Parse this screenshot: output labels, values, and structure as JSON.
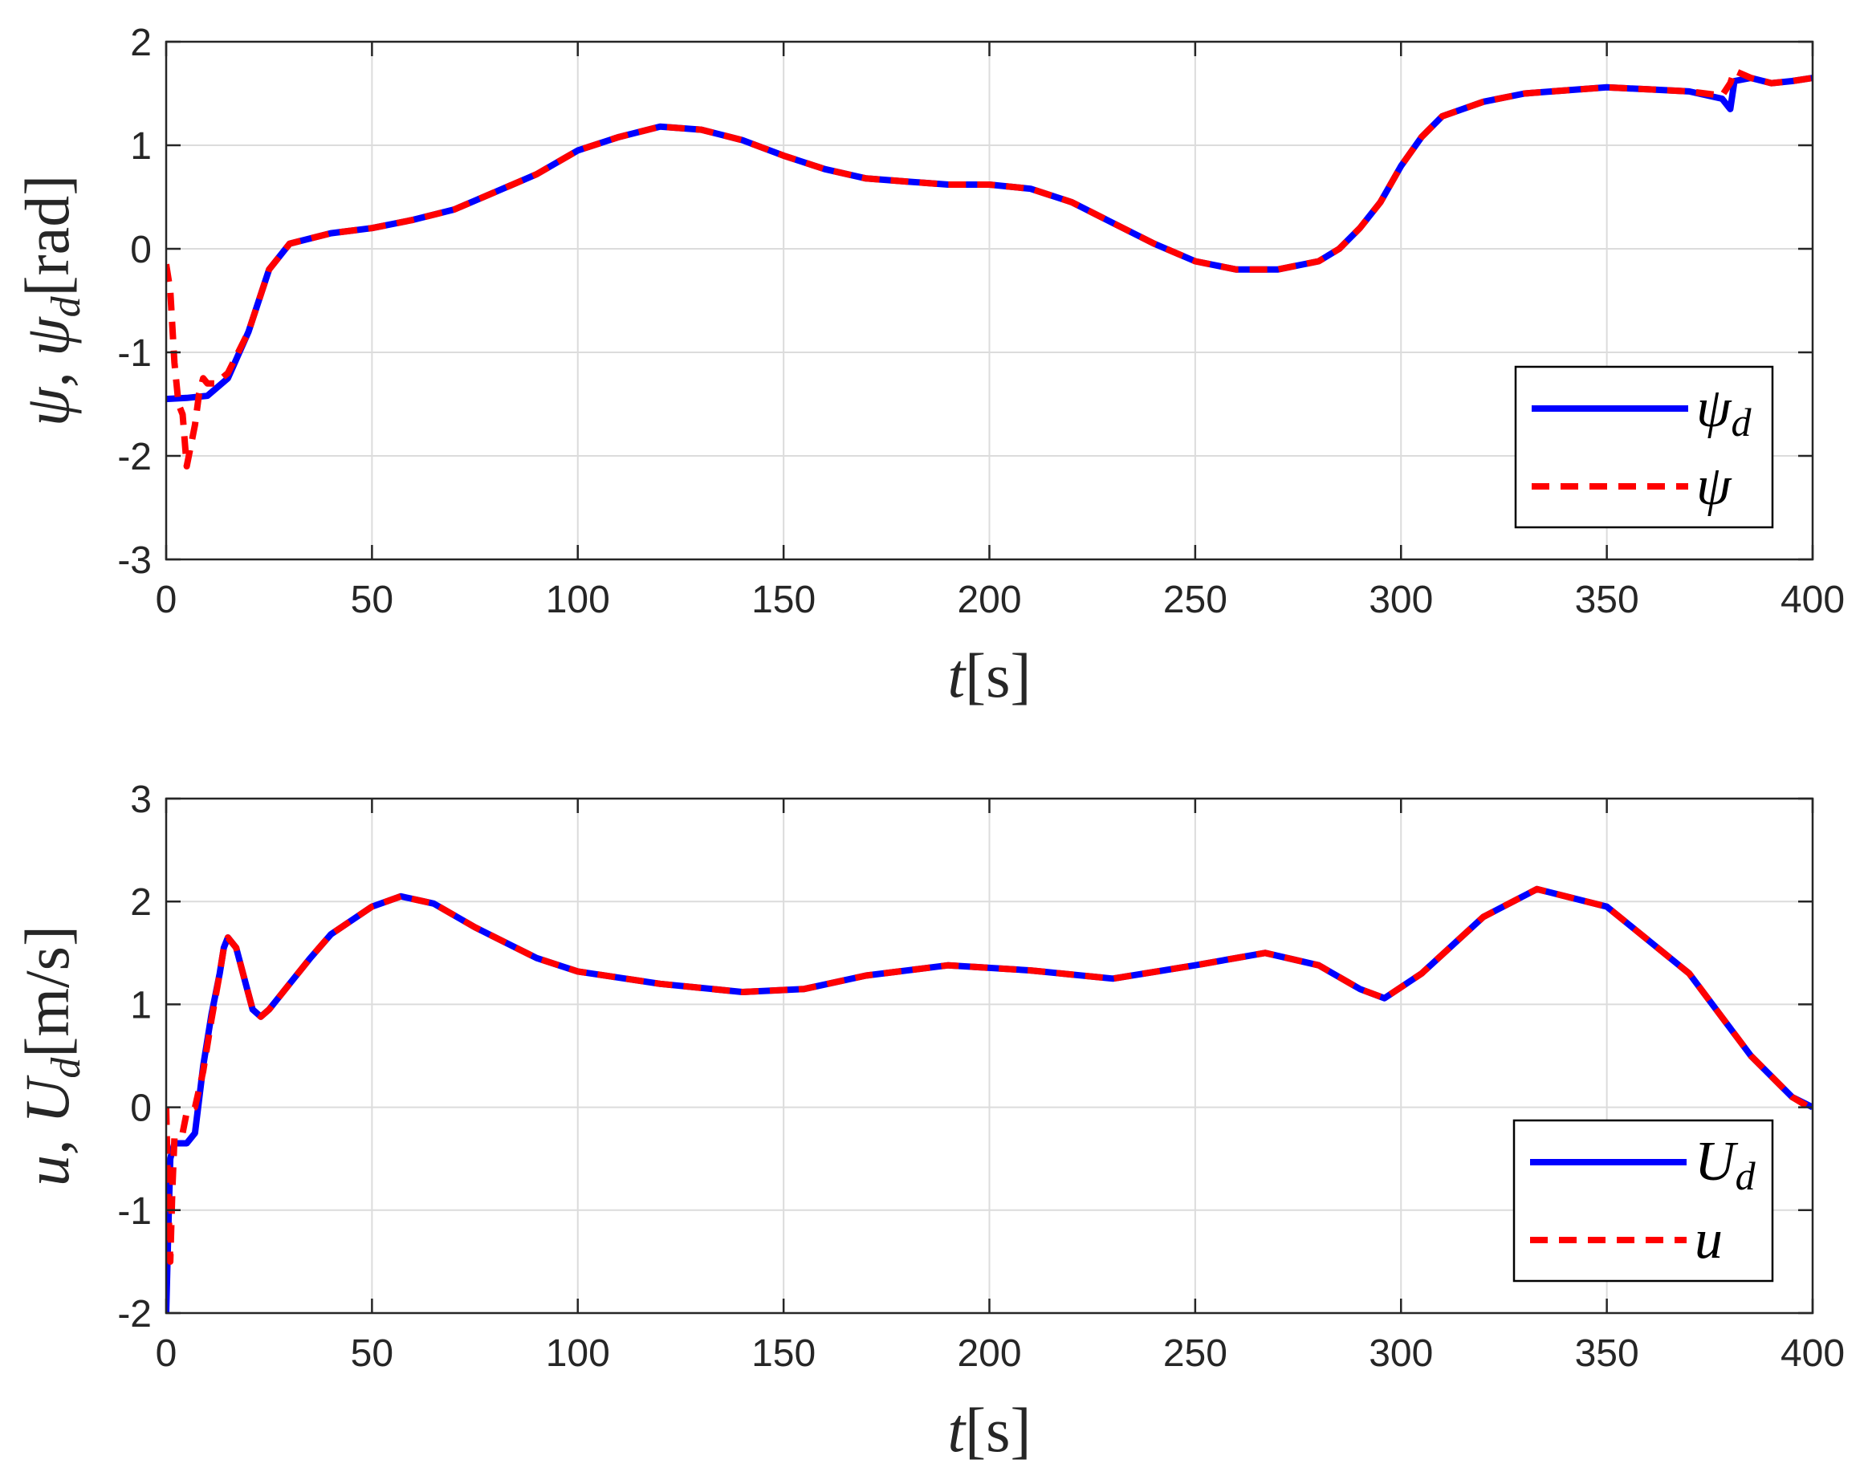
{
  "colors": {
    "desired": "#0000ff",
    "actual": "#ff0000",
    "grid": "#dcdcdc",
    "axis": "#262626"
  },
  "chart_data": [
    {
      "type": "line",
      "xlabel": {
        "main": "t",
        "unit": "[s]"
      },
      "ylabel": {
        "main": "ψ, ψ",
        "sub": "d",
        "unit": "[rad]"
      },
      "xlim": [
        0,
        400
      ],
      "ylim": [
        -3,
        2
      ],
      "x_ticks": [
        0,
        50,
        100,
        150,
        200,
        250,
        300,
        350,
        400
      ],
      "y_ticks": [
        -3,
        -2,
        -1,
        0,
        1,
        2
      ],
      "grid": true,
      "legend_position": "bottom-right",
      "series": [
        {
          "name": "ψ_d",
          "label_main": "ψ",
          "label_sub": "d",
          "style": "solid",
          "color": "#0000ff",
          "x": [
            0,
            5,
            10,
            15,
            20,
            25,
            30,
            40,
            50,
            60,
            70,
            80,
            90,
            100,
            110,
            120,
            130,
            140,
            150,
            160,
            170,
            180,
            190,
            200,
            210,
            220,
            230,
            240,
            250,
            260,
            270,
            280,
            285,
            290,
            295,
            300,
            305,
            310,
            320,
            330,
            340,
            350,
            360,
            370,
            378,
            380,
            381,
            385,
            390,
            395,
            400
          ],
          "y": [
            -1.45,
            -1.44,
            -1.42,
            -1.25,
            -0.8,
            -0.2,
            0.05,
            0.15,
            0.2,
            0.28,
            0.38,
            0.55,
            0.72,
            0.95,
            1.08,
            1.18,
            1.15,
            1.05,
            0.9,
            0.77,
            0.68,
            0.65,
            0.62,
            0.62,
            0.58,
            0.45,
            0.25,
            0.05,
            -0.12,
            -0.2,
            -0.2,
            -0.12,
            0.0,
            0.2,
            0.45,
            0.8,
            1.08,
            1.28,
            1.42,
            1.5,
            1.53,
            1.56,
            1.54,
            1.52,
            1.45,
            1.35,
            1.62,
            1.65,
            1.6,
            1.62,
            1.65
          ]
        },
        {
          "name": "ψ",
          "label_main": "ψ",
          "label_sub": "",
          "style": "dashed",
          "color": "#ff0000",
          "x": [
            0,
            1,
            2,
            3,
            4,
            5,
            6,
            7,
            8,
            9,
            10,
            12,
            15,
            20,
            25,
            30,
            40,
            50,
            60,
            70,
            80,
            90,
            100,
            110,
            120,
            130,
            140,
            150,
            160,
            170,
            180,
            190,
            200,
            210,
            220,
            230,
            240,
            250,
            260,
            270,
            280,
            285,
            290,
            295,
            300,
            305,
            310,
            320,
            330,
            340,
            350,
            360,
            370,
            378,
            380,
            381,
            385,
            390,
            395,
            400
          ],
          "y": [
            -0.15,
            -0.4,
            -1.1,
            -1.5,
            -1.6,
            -2.1,
            -1.9,
            -1.7,
            -1.4,
            -1.25,
            -1.3,
            -1.3,
            -1.2,
            -0.8,
            -0.2,
            0.05,
            0.15,
            0.2,
            0.28,
            0.38,
            0.55,
            0.72,
            0.95,
            1.08,
            1.18,
            1.15,
            1.05,
            0.9,
            0.77,
            0.68,
            0.65,
            0.62,
            0.62,
            0.58,
            0.45,
            0.25,
            0.05,
            -0.12,
            -0.2,
            -0.2,
            -0.12,
            0.0,
            0.2,
            0.45,
            0.8,
            1.08,
            1.28,
            1.42,
            1.5,
            1.53,
            1.56,
            1.54,
            1.52,
            1.48,
            1.6,
            1.72,
            1.65,
            1.6,
            1.62,
            1.65
          ]
        }
      ]
    },
    {
      "type": "line",
      "xlabel": {
        "main": "t",
        "unit": "[s]"
      },
      "ylabel": {
        "main": "u, U",
        "sub": "d",
        "unit": "[m/s]"
      },
      "xlim": [
        0,
        400
      ],
      "ylim": [
        -2,
        3
      ],
      "x_ticks": [
        0,
        50,
        100,
        150,
        200,
        250,
        300,
        350,
        400
      ],
      "y_ticks": [
        -2,
        -1,
        0,
        1,
        2,
        3
      ],
      "grid": true,
      "legend_position": "bottom-right",
      "series": [
        {
          "name": "U_d",
          "label_main": "U",
          "label_sub": "d",
          "style": "solid",
          "color": "#0000ff",
          "x": [
            0,
            0.5,
            1,
            2,
            3,
            5,
            7,
            9,
            11,
            13,
            14,
            15,
            17,
            19,
            21,
            23,
            25,
            30,
            35,
            40,
            50,
            57,
            65,
            75,
            90,
            100,
            120,
            140,
            155,
            170,
            190,
            210,
            230,
            250,
            267,
            280,
            290,
            296,
            305,
            320,
            333,
            350,
            370,
            385,
            395,
            400
          ],
          "y": [
            -2.0,
            -1.2,
            -0.5,
            -0.35,
            -0.35,
            -0.35,
            -0.25,
            0.4,
            0.9,
            1.3,
            1.55,
            1.65,
            1.55,
            1.25,
            0.95,
            0.88,
            0.95,
            1.2,
            1.45,
            1.68,
            1.95,
            2.05,
            1.98,
            1.75,
            1.45,
            1.32,
            1.2,
            1.12,
            1.15,
            1.28,
            1.38,
            1.33,
            1.25,
            1.38,
            1.5,
            1.38,
            1.15,
            1.06,
            1.3,
            1.85,
            2.12,
            1.95,
            1.3,
            0.5,
            0.1,
            0.0
          ]
        },
        {
          "name": "u",
          "label_main": "u",
          "label_sub": "",
          "style": "dashed",
          "color": "#ff0000",
          "x": [
            0,
            0.5,
            1,
            1.5,
            2,
            3,
            4,
            5,
            7,
            9,
            11,
            13,
            14,
            15,
            17,
            19,
            21,
            23,
            25,
            30,
            35,
            40,
            50,
            57,
            65,
            75,
            90,
            100,
            120,
            140,
            155,
            170,
            190,
            210,
            230,
            250,
            267,
            280,
            290,
            296,
            305,
            320,
            333,
            350,
            370,
            385,
            395,
            400
          ],
          "y": [
            0.0,
            -0.9,
            -1.5,
            -0.8,
            -0.3,
            -0.3,
            -0.25,
            -0.05,
            0.0,
            0.35,
            0.85,
            1.3,
            1.55,
            1.65,
            1.55,
            1.25,
            0.95,
            0.88,
            0.95,
            1.2,
            1.45,
            1.68,
            1.95,
            2.05,
            1.98,
            1.75,
            1.45,
            1.32,
            1.2,
            1.12,
            1.15,
            1.28,
            1.38,
            1.33,
            1.25,
            1.38,
            1.5,
            1.38,
            1.15,
            1.06,
            1.3,
            1.85,
            2.12,
            1.95,
            1.3,
            0.5,
            0.1,
            -0.02
          ]
        }
      ]
    }
  ]
}
